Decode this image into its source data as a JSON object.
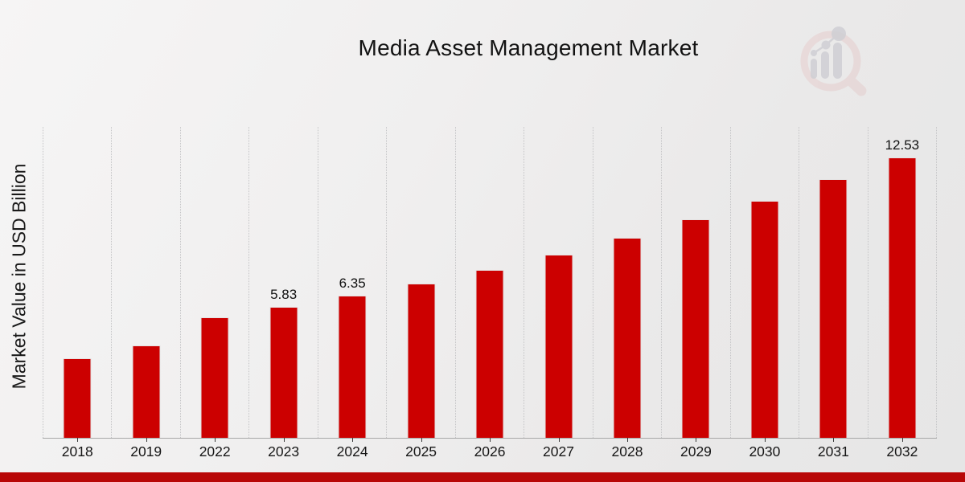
{
  "title": "Media Asset Management Market",
  "y_axis_label": "Market Value in USD Billion",
  "chart_data": {
    "type": "bar",
    "title": "Media Asset Management Market",
    "xlabel": "",
    "ylabel": "Market Value in USD Billion",
    "categories": [
      "2018",
      "2019",
      "2022",
      "2023",
      "2024",
      "2025",
      "2026",
      "2027",
      "2028",
      "2029",
      "2030",
      "2031",
      "2032"
    ],
    "values": [
      3.55,
      4.12,
      5.38,
      5.83,
      6.35,
      6.9,
      7.49,
      8.19,
      8.93,
      9.74,
      10.58,
      11.55,
      12.53
    ],
    "data_labels": {
      "2023": "5.83",
      "2024": "6.35",
      "2032": "12.53"
    },
    "ylim": [
      0,
      13.88
    ],
    "grid": "vertical-dotted",
    "legend": "none",
    "bar_color": "#cc0000"
  },
  "colors": {
    "bar": "#cc0000",
    "bottom_band": "#b80707",
    "grid_line": "#c4c4c6",
    "axis_line": "#a8a8a8",
    "text": "#151515",
    "logo_ring": "#e5cdcd",
    "logo_glyph": "#cfcfd4"
  },
  "logo": {
    "name": "magnifier-bar-chart-logo"
  }
}
